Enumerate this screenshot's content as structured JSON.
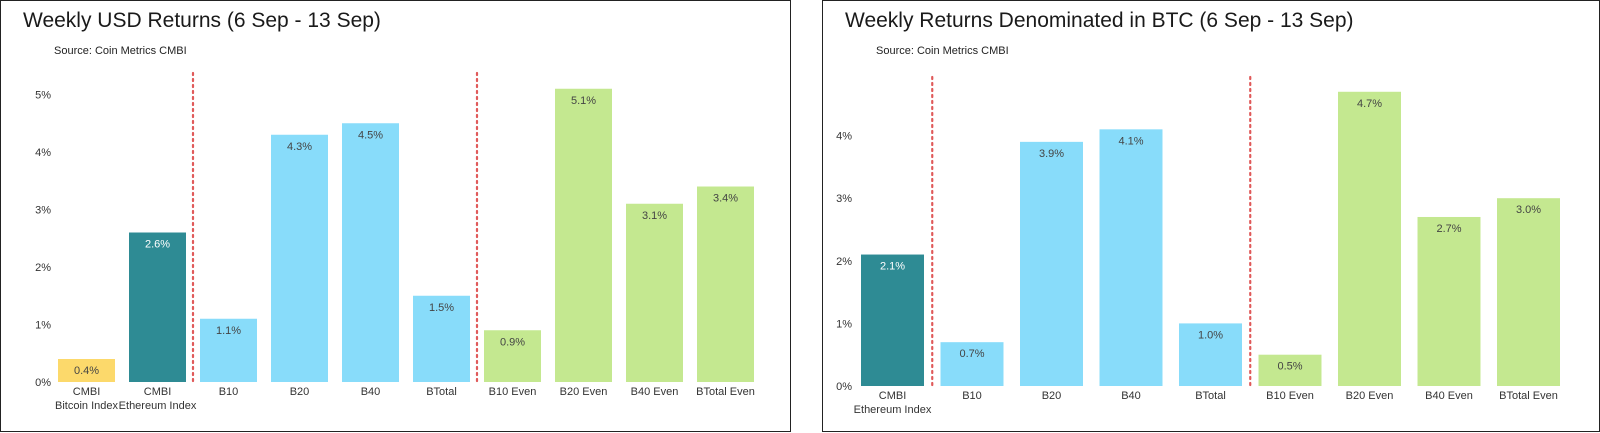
{
  "chart_data": [
    {
      "type": "bar",
      "title": "Weekly USD Returns (6 Sep - 13 Sep)",
      "source": "Source: Coin Metrics CMBI",
      "categories": [
        [
          "CMBI",
          "Bitcoin Index"
        ],
        [
          "CMBI",
          "Ethereum Index"
        ],
        [
          "B10"
        ],
        [
          "B20"
        ],
        [
          "B40"
        ],
        [
          "BTotal"
        ],
        [
          "B10 Even"
        ],
        [
          "B20 Even"
        ],
        [
          "B40 Even"
        ],
        [
          "BTotal Even"
        ]
      ],
      "values": [
        0.4,
        2.6,
        1.1,
        4.3,
        4.5,
        1.5,
        0.9,
        5.1,
        3.1,
        3.4
      ],
      "value_labels": [
        "0.4%",
        "2.6%",
        "1.1%",
        "4.3%",
        "4.5%",
        "1.5%",
        "0.9%",
        "5.1%",
        "3.1%",
        "3.4%"
      ],
      "bar_colors": [
        "#fcd96b",
        "#2e8b94",
        "#88dcfa",
        "#88dcfa",
        "#88dcfa",
        "#88dcfa",
        "#c4e890",
        "#c4e890",
        "#c4e890",
        "#c4e890"
      ],
      "label_colors": [
        "#444444",
        "#ffffff",
        "#444444",
        "#444444",
        "#444444",
        "#444444",
        "#444444",
        "#444444",
        "#444444",
        "#444444"
      ],
      "yticks": [
        "0%",
        "1%",
        "2%",
        "3%",
        "4%",
        "5%"
      ],
      "ylim": [
        0,
        5.5
      ],
      "separators_after": [
        1,
        5
      ],
      "separator_color": "#e05a5a",
      "grid": false,
      "legend": "none",
      "xlabel": "",
      "ylabel": ""
    },
    {
      "type": "bar",
      "title": "Weekly Returns Denominated in BTC (6 Sep - 13 Sep)",
      "source": "Source: Coin Metrics CMBI",
      "categories": [
        [
          "CMBI",
          "Ethereum Index"
        ],
        [
          "B10"
        ],
        [
          "B20"
        ],
        [
          "B40"
        ],
        [
          "BTotal"
        ],
        [
          "B10 Even"
        ],
        [
          "B20 Even"
        ],
        [
          "B40 Even"
        ],
        [
          "BTotal Even"
        ]
      ],
      "values": [
        2.1,
        0.7,
        3.9,
        4.1,
        1.0,
        0.5,
        4.7,
        2.7,
        3.0
      ],
      "value_labels": [
        "2.1%",
        "0.7%",
        "3.9%",
        "4.1%",
        "1.0%",
        "0.5%",
        "4.7%",
        "2.7%",
        "3.0%"
      ],
      "bar_colors": [
        "#2e8b94",
        "#88dcfa",
        "#88dcfa",
        "#88dcfa",
        "#88dcfa",
        "#c4e890",
        "#c4e890",
        "#c4e890",
        "#c4e890"
      ],
      "label_colors": [
        "#ffffff",
        "#444444",
        "#444444",
        "#444444",
        "#444444",
        "#444444",
        "#444444",
        "#444444",
        "#444444"
      ],
      "yticks": [
        "0%",
        "1%",
        "2%",
        "3%",
        "4%"
      ],
      "ylim": [
        0,
        4.9
      ],
      "separators_after": [
        0,
        4
      ],
      "separator_color": "#e05a5a",
      "grid": false,
      "legend": "none",
      "xlabel": "",
      "ylabel": ""
    }
  ]
}
